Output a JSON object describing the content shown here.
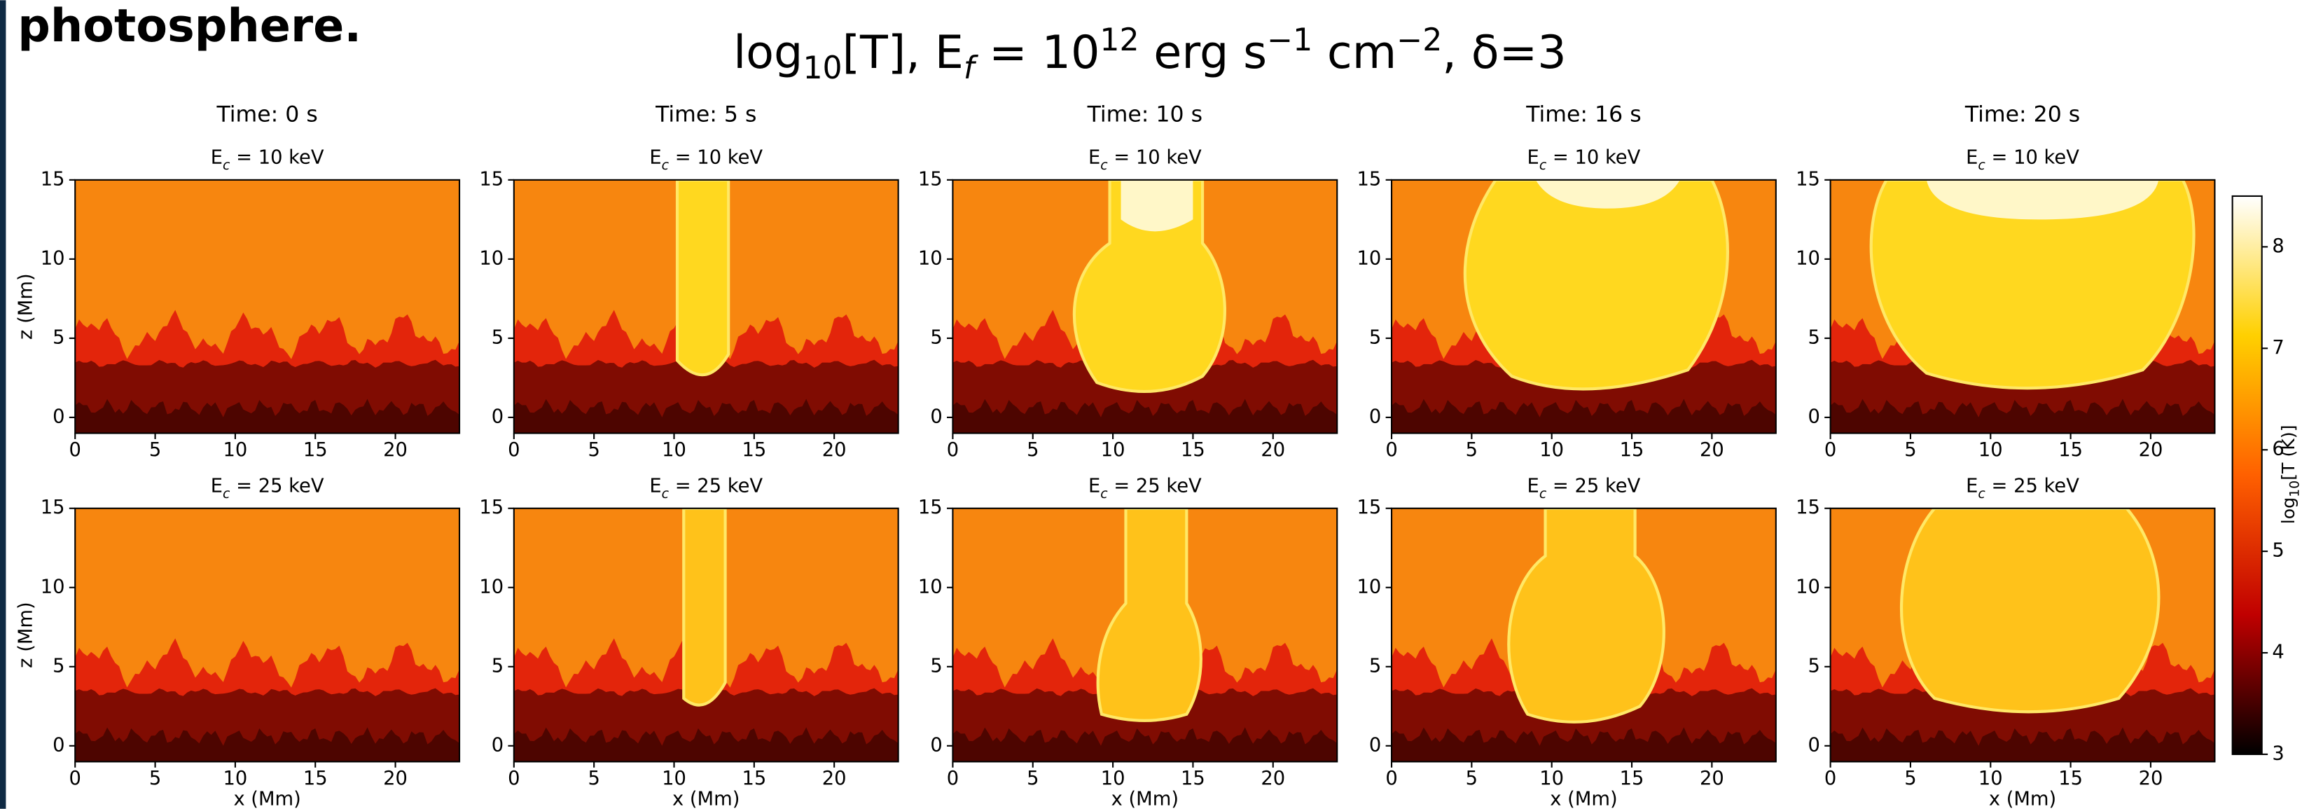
{
  "page_text": "photosphere.",
  "chart_data": {
    "type": "heatmap",
    "title": [
      "log",
      "10",
      "[T], E",
      "f",
      " = 10",
      "12",
      " erg s",
      "−1",
      " cm",
      "−2",
      ", δ=3"
    ],
    "columns": [
      "Time: 0 s",
      "Time: 5 s",
      "Time: 10 s",
      "Time: 16 s",
      "Time: 20 s"
    ],
    "rows": [
      {
        "label": [
          "E",
          "c",
          " = 10 keV"
        ]
      },
      {
        "label": [
          "E",
          "c",
          " = 25 keV"
        ]
      }
    ],
    "xlabel": "x (Mm)",
    "ylabel": "z (Mm)",
    "xlim": [
      0,
      24
    ],
    "xticks": [
      0,
      5,
      10,
      15,
      20
    ],
    "ylim": [
      -1,
      15
    ],
    "yticks": [
      0,
      5,
      10,
      15
    ],
    "colorbar": {
      "label": [
        "log",
        "10",
        "[T (K)]"
      ],
      "colors": [
        "#000000",
        "#c00000",
        "#ff6000",
        "#ffd000",
        "#ffffff"
      ],
      "lim": [
        3,
        8.5
      ],
      "ticks": [
        3,
        4,
        5,
        6,
        7,
        8
      ]
    }
  }
}
